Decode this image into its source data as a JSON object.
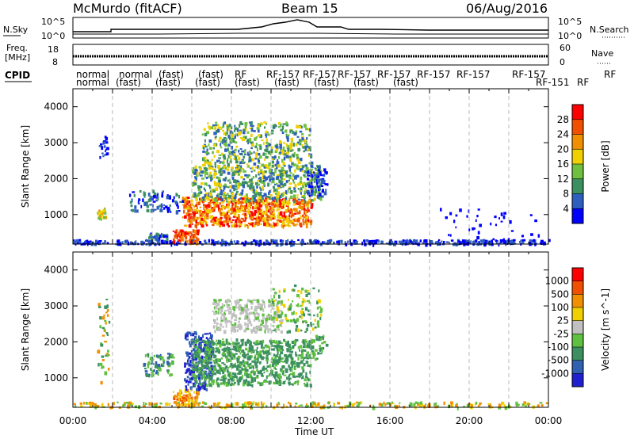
{
  "header": {
    "station": "McMurdo (fitACF)",
    "beam": "Beam 15",
    "date": "06/Aug/2016"
  },
  "top_panels": {
    "nsky_label": "N.Sky",
    "nsearch_label": "N.Search",
    "nsky_ticks": [
      "10^5",
      "10^0"
    ],
    "nsearch_ticks": [
      "10^5",
      "10^0"
    ],
    "freq_label_1": "Freq.",
    "freq_label_2": "[MHz]",
    "freq_ticks": [
      "18",
      "8"
    ],
    "nave_label": "Nave",
    "nave_ticks": [
      "60",
      "0"
    ],
    "cpid_label": "CPID",
    "cpid_row1": [
      "normal",
      "normal",
      "(fast)",
      "(fast)",
      "RF",
      "RF-157",
      "RF-157",
      "RF-157",
      "RF-157",
      "RF-157",
      "RF-157",
      "RF-157",
      "RF"
    ],
    "cpid_row2": [
      "normal",
      "(fast)",
      "(fast)",
      "(fast)",
      "(fast)",
      "(fast)",
      "(fast)",
      "(fast)",
      "(fast)",
      "RF-151",
      "RF"
    ]
  },
  "chart_data": [
    {
      "type": "heatmap",
      "name": "power",
      "ylabel": "Slant Range [km]",
      "x_ticks": [
        "00:00",
        "04:00",
        "08:00",
        "12:00",
        "16:00",
        "20:00",
        "00:00"
      ],
      "x_range_hours": [
        0,
        24
      ],
      "y_ticks": [
        1000,
        2000,
        3000,
        4000
      ],
      "ylim": [
        180,
        4500
      ],
      "colorbar_label": "Power [dB]",
      "colorbar_ticks": [
        "28",
        "24",
        "20",
        "16",
        "12",
        "8",
        "4"
      ],
      "colors": [
        "#0000ff",
        "#2e5fbf",
        "#3c9060",
        "#70c040",
        "#f0d000",
        "#f09000",
        "#f05000",
        "#ff0000"
      ]
    },
    {
      "type": "heatmap",
      "name": "velocity",
      "ylabel": "Slant Range [km]",
      "xlabel": "Time UT",
      "x_ticks": [
        "00:00",
        "04:00",
        "08:00",
        "12:00",
        "16:00",
        "20:00",
        "00:00"
      ],
      "x_range_hours": [
        0,
        24
      ],
      "y_ticks": [
        1000,
        2000,
        3000,
        4000
      ],
      "ylim": [
        180,
        4500
      ],
      "colorbar_label": "Velocity [m s^-1]",
      "colorbar_ticks": [
        "1000",
        "500",
        "100",
        "25",
        "-25",
        "-100",
        "-500",
        "-1000"
      ],
      "colors": [
        "#2020d0",
        "#3060b0",
        "#3c9060",
        "#60c040",
        "#c0c0c0",
        "#f0d000",
        "#f09000",
        "#f05000",
        "#ff0000"
      ]
    }
  ]
}
